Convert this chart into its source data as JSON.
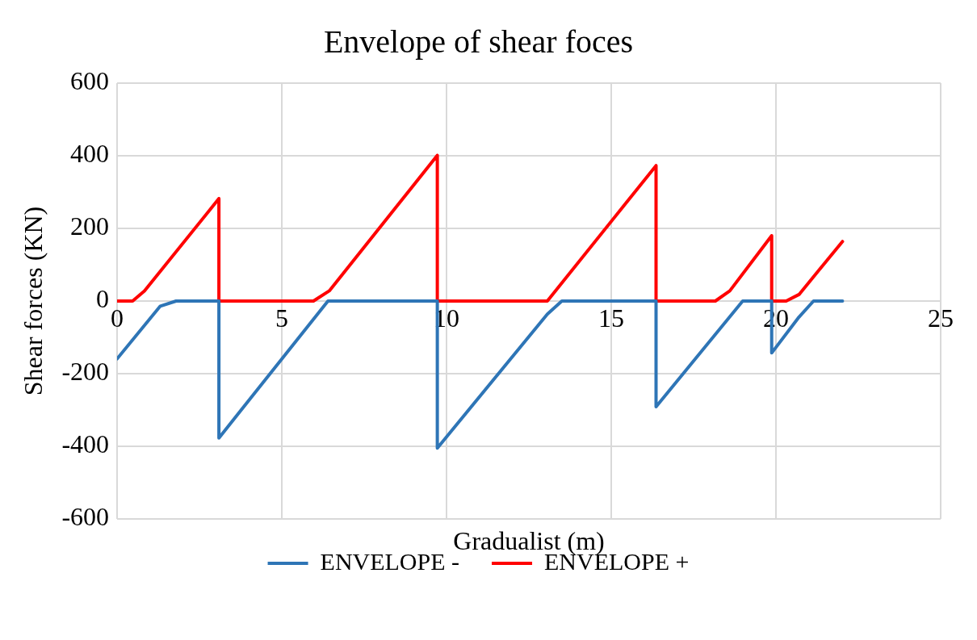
{
  "chart_data": {
    "type": "line",
    "title": "Envelope of shear foces",
    "xlabel": "Gradualist (m)",
    "ylabel": "Shear forces (KN)",
    "xlim": [
      0,
      25
    ],
    "xticks": [
      0,
      5,
      10,
      15,
      20,
      25
    ],
    "ylim": [
      -600,
      600
    ],
    "yticks": [
      -600,
      -400,
      -200,
      0,
      200,
      400,
      600
    ],
    "grid": true,
    "legend": "bottom",
    "marker": "none",
    "line_style": "solid",
    "series": [
      {
        "name": "ENVELOPE -",
        "color": "#2e75b6",
        "x": [
          0,
          1.31,
          1.79,
          3.09,
          3.09,
          6.4,
          9.72,
          9.72,
          13.06,
          13.5,
          16.36,
          16.36,
          18.99,
          19.87,
          19.87,
          20.7,
          21.14,
          22.02
        ],
        "values": [
          -159,
          -14,
          0,
          0,
          -377,
          0,
          0,
          -405,
          -36,
          0,
          0,
          -291,
          0,
          0,
          -143,
          -44,
          0,
          0
        ]
      },
      {
        "name": "ENVELOPE +",
        "color": "#ff0000",
        "x": [
          0,
          0.47,
          0.83,
          3.09,
          3.09,
          5.96,
          6.44,
          9.72,
          9.72,
          13.06,
          16.36,
          16.36,
          18.16,
          18.6,
          19.87,
          19.87,
          20.31,
          20.7,
          22.02
        ],
        "values": [
          0,
          0,
          28,
          282,
          0,
          0,
          28,
          401,
          0,
          0,
          373,
          0,
          0,
          28,
          180,
          0,
          0,
          18,
          164
        ]
      }
    ]
  }
}
